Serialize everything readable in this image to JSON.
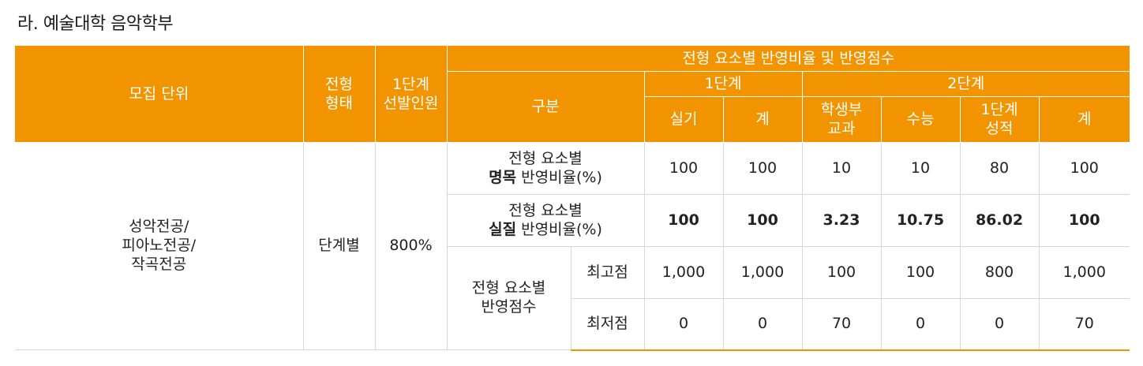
{
  "title": "라. 예술대학 음악학부",
  "header": {
    "unit": "모집 단위",
    "type_line1": "전형",
    "type_line2": "형태",
    "select_line1": "1단계",
    "select_line2": "선발인원",
    "group_title": "전형 요소별 반영비율 및 반영점수",
    "category": "구분",
    "stage1": "1단계",
    "stage2": "2단계",
    "cols": {
      "practical": "실기",
      "total1": "계",
      "record_line1": "학생부",
      "record_line2": "교과",
      "csat": "수능",
      "stage1score_line1": "1단계",
      "stage1score_line2": "성적",
      "total2": "계"
    }
  },
  "row": {
    "unit_line1": "성악전공/",
    "unit_line2": "피아노전공/",
    "unit_line3": "작곡전공",
    "type": "단계별",
    "select_ratio": "800%"
  },
  "nominal": {
    "label_line1": "전형 요소별",
    "label_bold": "명목",
    "label_rest": " 반영비율(%)",
    "values": [
      "100",
      "100",
      "10",
      "10",
      "80",
      "100"
    ]
  },
  "actual": {
    "label_line1": "전형 요소별",
    "label_bold": "실질",
    "label_rest": " 반영비율(%)",
    "values": [
      "100",
      "100",
      "3.23",
      "10.75",
      "86.02",
      "100"
    ]
  },
  "score": {
    "label_line1": "전형 요소별",
    "label_line2": "반영점수",
    "max_label": "최고점",
    "min_label": "최저점",
    "max_values": [
      "1,000",
      "1,000",
      "100",
      "100",
      "800",
      "1,000"
    ],
    "min_values": [
      "0",
      "0",
      "70",
      "0",
      "0",
      "70"
    ]
  }
}
